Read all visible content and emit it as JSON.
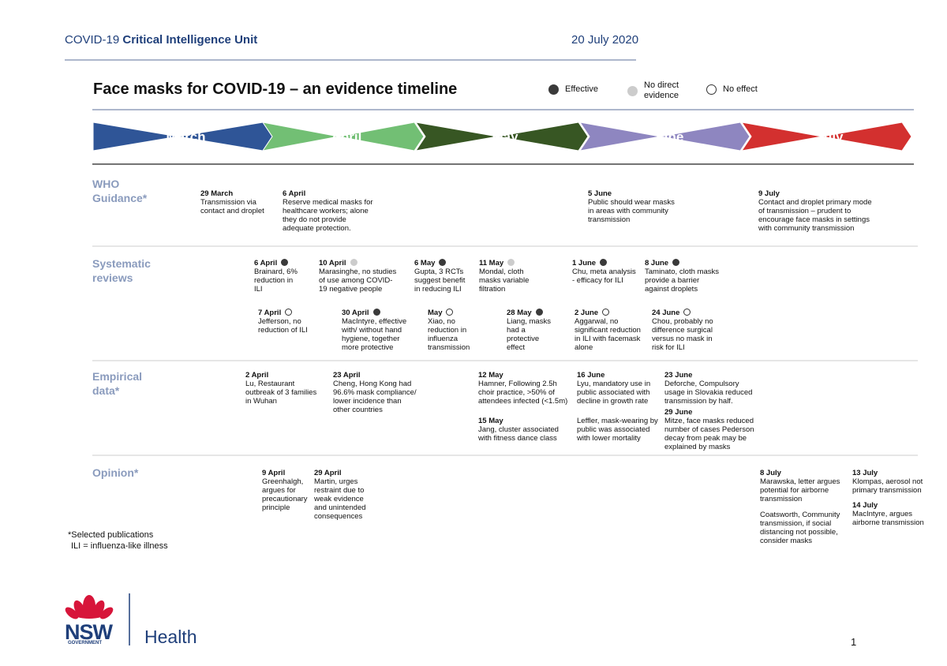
{
  "header": {
    "unit_prefix": "COVID-19",
    "unit_name": "Critical Intelligence Unit",
    "date": "20 July 2020"
  },
  "title": "Face masks for COVID-19 – an evidence timeline",
  "legend": [
    {
      "label": "Effective",
      "fill": "#3a3a3a"
    },
    {
      "label": "No direct evidence",
      "fill": "#cccccc"
    },
    {
      "label": "No effect",
      "fill": "none"
    }
  ],
  "months": [
    {
      "label": "March",
      "color": "#2f5597"
    },
    {
      "label": "April",
      "color": "#72bf74"
    },
    {
      "label": "May",
      "color": "#375623"
    },
    {
      "label": "June",
      "color": "#8e86c0"
    },
    {
      "label": "July",
      "color": "#d3302f"
    }
  ],
  "rows": [
    {
      "label": "WHO Guidance*",
      "entries": [
        {
          "date": "29 March",
          "text": "Transmission via contact and droplet"
        },
        {
          "date": "6 April",
          "text": "Reserve medical masks for healthcare workers; alone they do not provide adequate protection."
        },
        {
          "date": "5 June",
          "text": "Public should wear masks in areas with community transmission"
        },
        {
          "date": "9 July",
          "text": "Contact and droplet primary mode of transmission – prudent to encourage face masks in settings with community transmission"
        }
      ]
    },
    {
      "label": "Systematic reviews",
      "entries": [
        {
          "date": "6 April",
          "fill": "#3a3a3a",
          "text": "Brainard, 6% reduction in ILI"
        },
        {
          "date": "10 April",
          "fill": "#cccccc",
          "text": "Marasinghe, no studies of use among COVID-19 negative people"
        },
        {
          "date": "6 May",
          "fill": "#3a3a3a",
          "text": "Gupta, 3 RCTs suggest benefit in reducing ILI"
        },
        {
          "date": "11 May",
          "fill": "#cccccc",
          "text": "Mondal, cloth masks variable filtration"
        },
        {
          "date": "1 June",
          "fill": "#3a3a3a",
          "text": "Chu, meta analysis - efficacy for ILI"
        },
        {
          "date": "8 June",
          "fill": "#3a3a3a",
          "text": "Taminato, cloth masks provide a barrier against droplets"
        },
        {
          "date": "7 April",
          "fill": "none",
          "text": "Jefferson, no reduction of ILI"
        },
        {
          "date": "30 April",
          "fill": "#3a3a3a",
          "text": "MacIntyre, effective with/ without hand hygiene, together more protective"
        },
        {
          "date": "May",
          "fill": "none",
          "text": "Xiao, no reduction in influenza transmission"
        },
        {
          "date": "28 May",
          "fill": "#3a3a3a",
          "text": "Liang, masks had a protective effect"
        },
        {
          "date": "2 June",
          "fill": "none",
          "text": "Aggarwal, no significant reduction in ILI with facemask alone"
        },
        {
          "date": "24 June",
          "fill": "none",
          "text": "Chou, probably no difference surgical versus no mask in risk for ILI"
        }
      ]
    },
    {
      "label": "Empirical data*",
      "entries": [
        {
          "date": "2 April",
          "text": "Lu, Restaurant outbreak of 3 families in Wuhan"
        },
        {
          "date": "23 April",
          "text": "Cheng, Hong Kong had 96.6% mask compliance/ lower incidence than other countries"
        },
        {
          "date": "12 May",
          "text": "Hamner, Following 2.5h choir practice, >50% of attendees infected (<1.5m)"
        },
        {
          "date": "15 May",
          "text": "Jang, cluster associated with fitness dance class"
        },
        {
          "date": "16 June",
          "text": "Lyu, mandatory use in public associated with decline in growth rate"
        },
        {
          "text": "Leffler, mask-wearing by public was associated with lower mortality"
        },
        {
          "date": "23 June",
          "text": "Deforche, Compulsory usage in Slovakia reduced transmission by half."
        },
        {
          "date": "29 June",
          "text": "Mitze, face masks reduced number of cases Pederson decay from peak may be explained by masks"
        }
      ]
    },
    {
      "label": "Opinion*",
      "entries": [
        {
          "date": "9 April",
          "text": "Greenhalgh, argues for precautionary principle"
        },
        {
          "date": "29 April",
          "text": "Martin, urges restraint due to weak evidence and unintended consequences"
        },
        {
          "date": "8 July",
          "text": "Marawska, letter argues potential for airborne transmission"
        },
        {
          "text": "Coatsworth, Community transmission, if social distancing not possible, consider masks"
        },
        {
          "date": "13 July",
          "text": "Klompas, aerosol not primary transmission"
        },
        {
          "date": "14 July",
          "text": "MacIntyre, argues airborne transmission"
        }
      ]
    }
  ],
  "footnotes": [
    "*Selected publications",
    "ILI = influenza-like illness"
  ],
  "logo": {
    "mark": "NSW",
    "sub": "GOVERNMENT",
    "name": "Health"
  },
  "page_number": 1
}
